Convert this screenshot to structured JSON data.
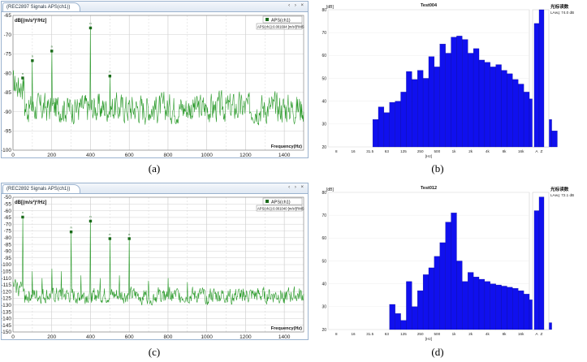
{
  "captions": [
    "(a)",
    "(b)",
    "(c)",
    "(d)"
  ],
  "window_controls": "‹ › ×",
  "chart_data": [
    {
      "type": "line",
      "panel": "a",
      "tab_title": "(REC2897 Signals APS(ch1))",
      "ylabel": "dB[(m/s²)²/Hz]",
      "xlabel": "Frequency(Hz)",
      "xlim": [
        0,
        1500
      ],
      "ylim": [
        -100,
        -65
      ],
      "xticks": [
        0,
        200,
        400,
        600,
        800,
        1000,
        1200,
        1400
      ],
      "yticks": [
        -100,
        -95,
        -90,
        -85,
        -80,
        -75,
        -70,
        -65
      ],
      "legend": "APS(ch1)",
      "legend_info": "APS(ch1):0.001694 [m/s²]RMS",
      "noise_floor": -89,
      "noise_amplitude": 4.5,
      "series": [
        {
          "color": "#2a9a2a"
        }
      ],
      "peaks": [
        {
          "x": 50,
          "y": -81
        },
        {
          "x": 100,
          "y": -76.5
        },
        {
          "x": 200,
          "y": -74
        },
        {
          "x": 400,
          "y": -68
        },
        {
          "x": 500,
          "y": -80.5
        }
      ],
      "grid": true
    },
    {
      "type": "bar",
      "panel": "b",
      "title": "Test004",
      "ylabel": "[dB]",
      "xlabel": "[Hz]",
      "side_title": "光标读数",
      "side_value": "LAeq: 74.0 dB",
      "ylim": [
        20,
        80
      ],
      "yticks": [
        20,
        30,
        40,
        50,
        60,
        70,
        80
      ],
      "xtick_labels": [
        "8",
        "16",
        "31.5",
        "63",
        "125",
        "250",
        "500",
        "1k",
        "2k",
        "4k",
        "8k",
        "16k"
      ],
      "bar_color": "#1010ee",
      "values": [
        32,
        37.5,
        35,
        39.5,
        40,
        44,
        53,
        49.5,
        53.5,
        50,
        59.5,
        55,
        65,
        61,
        68,
        68.5,
        67,
        61,
        63,
        58,
        57,
        55,
        56,
        53.5,
        52,
        49.5,
        47.5,
        44,
        41,
        37.5,
        35,
        32,
        27
      ],
      "overall_labels": [
        "A",
        "Z"
      ],
      "overall_values": [
        74,
        80
      ]
    },
    {
      "type": "line",
      "panel": "c",
      "tab_title": "(REC2892 Signals APS(ch1))",
      "ylabel": "dB[(m/s²)²/Hz]",
      "xlabel": "Frequency(Hz)",
      "xlim": [
        0,
        1500
      ],
      "ylim": [
        -150,
        -50
      ],
      "xticks": [
        0,
        200,
        400,
        600,
        800,
        1000,
        1200,
        1400
      ],
      "yticks": [
        -150,
        -145,
        -140,
        -135,
        -130,
        -125,
        -120,
        -115,
        -110,
        -105,
        -100,
        -95,
        -90,
        -85,
        -80,
        -75,
        -70,
        -65,
        -60,
        -55,
        -50
      ],
      "legend": "APS(ch1)",
      "legend_info": "APS(ch1):0.001040 [m/s²]RMS",
      "noise_floor": -123,
      "noise_amplitude": 7,
      "series": [
        {
          "color": "#2a9a2a"
        }
      ],
      "peaks": [
        {
          "x": 50,
          "y": -64
        },
        {
          "x": 100,
          "y": -105
        },
        {
          "x": 150,
          "y": -110
        },
        {
          "x": 200,
          "y": -103
        },
        {
          "x": 250,
          "y": -105
        },
        {
          "x": 300,
          "y": -75
        },
        {
          "x": 350,
          "y": -108
        },
        {
          "x": 400,
          "y": -67
        },
        {
          "x": 450,
          "y": -110
        },
        {
          "x": 500,
          "y": -80
        },
        {
          "x": 550,
          "y": -108
        },
        {
          "x": 600,
          "y": -80
        },
        {
          "x": 700,
          "y": -112
        },
        {
          "x": 800,
          "y": -110
        },
        {
          "x": 900,
          "y": -113
        }
      ],
      "grid": true
    },
    {
      "type": "bar",
      "panel": "d",
      "title": "Test012",
      "ylabel": "[dB]",
      "xlabel": "[Hz]",
      "side_title": "光标读数",
      "side_value": "LAeq: 72.1 dB",
      "ylim": [
        20,
        80
      ],
      "yticks": [
        20,
        30,
        40,
        50,
        60,
        70,
        80
      ],
      "xtick_labels": [
        "8",
        "16",
        "31.5",
        "63",
        "125",
        "250",
        "500",
        "1k",
        "2k",
        "4k",
        "8k",
        "16k"
      ],
      "bar_color": "#1010ee",
      "values": [
        31,
        27,
        24,
        41,
        30,
        37,
        44,
        47,
        52,
        58,
        67,
        71,
        50,
        41,
        45,
        43,
        42,
        41,
        40,
        39.5,
        39,
        38.5,
        38,
        37,
        35.5,
        33,
        30,
        26,
        23
      ],
      "bar_start_slot": 4,
      "overall_labels": [
        "A",
        "Z"
      ],
      "overall_values": [
        72,
        78
      ]
    }
  ]
}
